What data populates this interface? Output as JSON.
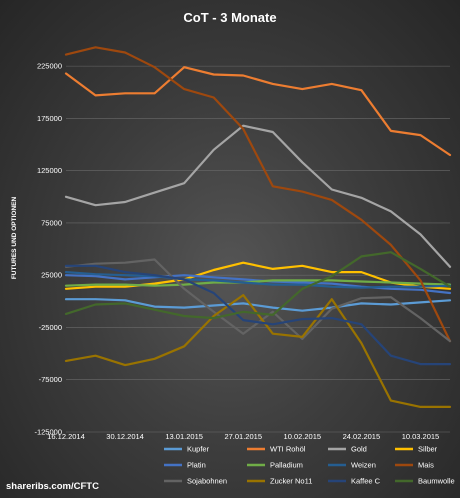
{
  "chart_data": {
    "type": "line",
    "title": "CoT - 3 Monate",
    "xlabel": "",
    "ylabel": "FUTURES UND OPTIONEN",
    "ylim": [
      -125000,
      250000
    ],
    "yticks": [
      -125000,
      -75000,
      -25000,
      25000,
      75000,
      125000,
      175000,
      225000
    ],
    "ytick_labels": [
      "-125000",
      "-75000",
      "-25000",
      "25000",
      "75000",
      "125000",
      "175000",
      "225000"
    ],
    "x": [
      "16.12.2014",
      "23.12.2014",
      "30.12.2014",
      "06.01.2015",
      "13.01.2015",
      "20.01.2015",
      "27.01.2015",
      "03.02.2015",
      "10.02.2015",
      "17.02.2015",
      "24.02.2015",
      "03.03.2015",
      "10.03.2015",
      "17.03.2015"
    ],
    "xtick_labels": [
      "16.12.2014",
      "30.12.2014",
      "13.01.2015",
      "27.01.2015",
      "10.02.2015",
      "24.02.2015",
      "10.03.2015"
    ],
    "grid": true,
    "legend_position": "bottom",
    "series": [
      {
        "name": "Kupfer",
        "color": "#5b9bd5",
        "values": [
          2000,
          2000,
          1000,
          -5000,
          -6000,
          -4000,
          -2000,
          -6000,
          -9000,
          -6000,
          -2000,
          -3000,
          -1000,
          1000
        ]
      },
      {
        "name": "WTI Rohöl",
        "color": "#ed7d31",
        "values": [
          218000,
          197000,
          199000,
          199000,
          224000,
          217000,
          216000,
          208000,
          203000,
          208000,
          202000,
          163000,
          159000,
          140000
        ]
      },
      {
        "name": "Gold",
        "color": "#a5a5a5",
        "values": [
          100000,
          92000,
          95000,
          104000,
          113000,
          145000,
          168000,
          162000,
          133000,
          107000,
          99000,
          86000,
          64000,
          33000
        ]
      },
      {
        "name": "Silber",
        "color": "#ffc000",
        "values": [
          12000,
          14000,
          14000,
          17000,
          21000,
          30000,
          37000,
          31000,
          34000,
          28000,
          28000,
          18000,
          14000,
          12000
        ]
      },
      {
        "name": "Platin",
        "color": "#4472c4",
        "values": [
          25000,
          24000,
          21000,
          23000,
          25000,
          23000,
          21000,
          19000,
          18000,
          17000,
          14000,
          12000,
          11000,
          8000
        ]
      },
      {
        "name": "Palladium",
        "color": "#70ad47",
        "values": [
          15000,
          16000,
          16000,
          15000,
          16000,
          18000,
          18000,
          20000,
          20000,
          20000,
          19000,
          18000,
          17000,
          16000
        ]
      },
      {
        "name": "Weizen",
        "color": "#255e91",
        "values": [
          28000,
          26000,
          25000,
          24000,
          21000,
          20000,
          18000,
          16000,
          16000,
          14000,
          13000,
          14000,
          14000,
          15000
        ]
      },
      {
        "name": "Mais",
        "color": "#9e480e",
        "values": [
          236000,
          243000,
          238000,
          224000,
          203000,
          195000,
          165000,
          110000,
          105000,
          97000,
          78000,
          54000,
          20000,
          -38000
        ]
      },
      {
        "name": "Sojabohnen",
        "color": "#636363",
        "values": [
          33000,
          36000,
          37000,
          40000,
          12000,
          -10000,
          -31000,
          -10000,
          -36000,
          -7000,
          3000,
          4000,
          -16000,
          -38000
        ]
      },
      {
        "name": "Zucker No11",
        "color": "#997300",
        "values": [
          -57000,
          -52000,
          -61000,
          -55000,
          -43000,
          -14000,
          6000,
          -31000,
          -34000,
          2000,
          -40000,
          -95000,
          -101000,
          -101000
        ]
      },
      {
        "name": "Kaffee C",
        "color": "#264478",
        "values": [
          34000,
          34000,
          28000,
          25000,
          21000,
          8000,
          -18000,
          -22000,
          -17000,
          -16000,
          -22000,
          -52000,
          -60000,
          -60000
        ]
      },
      {
        "name": "Baumwolle",
        "color": "#43682b",
        "values": [
          -12000,
          -3000,
          -2000,
          -8000,
          -14000,
          -16000,
          -10000,
          -13000,
          12000,
          24000,
          43000,
          47000,
          31000,
          14000
        ]
      }
    ]
  },
  "footer": {
    "source": "sharer",
    "source_bold": "ibs.com/CFTC"
  }
}
